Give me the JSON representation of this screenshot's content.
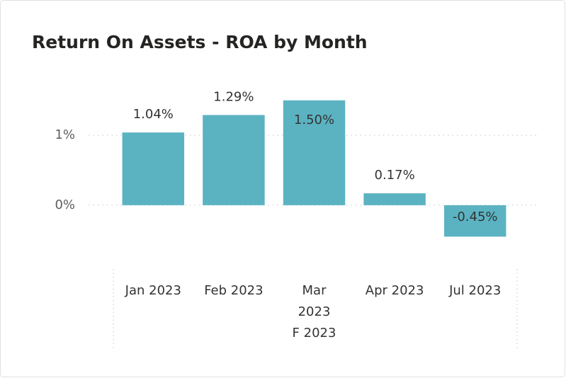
{
  "chart_data": {
    "type": "bar",
    "title": "Return On Assets - ROA by Month",
    "categories": [
      [
        "Jan 2023"
      ],
      [
        "Feb 2023"
      ],
      [
        "Mar",
        "2023",
        "F 2023"
      ],
      [
        "Apr 2023"
      ],
      [
        "Jul 2023"
      ]
    ],
    "values": [
      1.04,
      1.29,
      1.5,
      0.17,
      -0.45
    ],
    "value_labels": [
      "1.04%",
      "1.29%",
      "1.50%",
      "0.17%",
      "-0.45%"
    ],
    "color": "#5bb3c2",
    "ylim": [
      -0.7,
      1.7
    ],
    "yticks": [
      {
        "value": 0,
        "label": "0%"
      },
      {
        "value": 1,
        "label": "1%"
      }
    ],
    "grid": true
  }
}
